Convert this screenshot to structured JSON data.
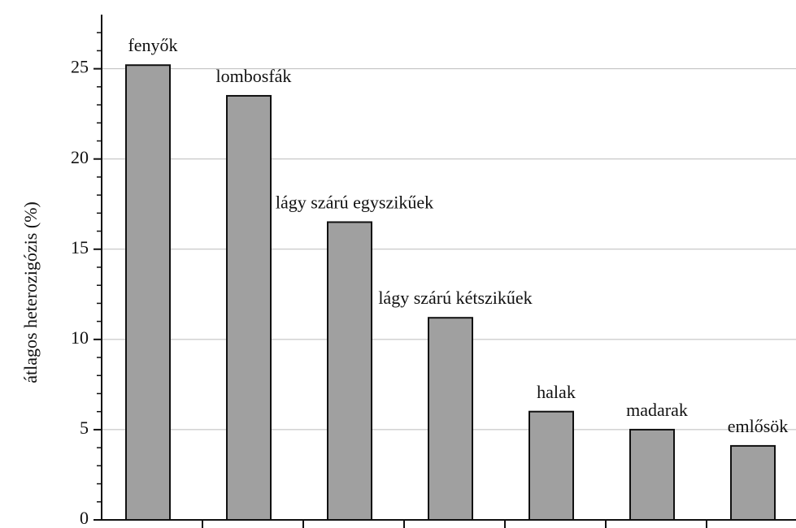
{
  "chart_data": {
    "type": "bar",
    "ylabel": "átlagos heterozigózis (%)",
    "categories": [
      "fenyők",
      "lombosfák",
      "lágy szárú egyszikűek",
      "lágy szárú kétszikűek",
      "halak",
      "madarak",
      "emlősök"
    ],
    "values": [
      25.2,
      23.5,
      16.5,
      11.2,
      6.0,
      5.0,
      4.1
    ],
    "color": "#a0a0a0",
    "ylim": [
      0,
      28
    ],
    "yticks": [
      0,
      5,
      10,
      15,
      20,
      25
    ],
    "minor_yticks": [
      1,
      2,
      3,
      4,
      6,
      7,
      8,
      9,
      11,
      12,
      13,
      14,
      16,
      17,
      18,
      19,
      21,
      22,
      23,
      24,
      26,
      27
    ],
    "grid": true
  }
}
